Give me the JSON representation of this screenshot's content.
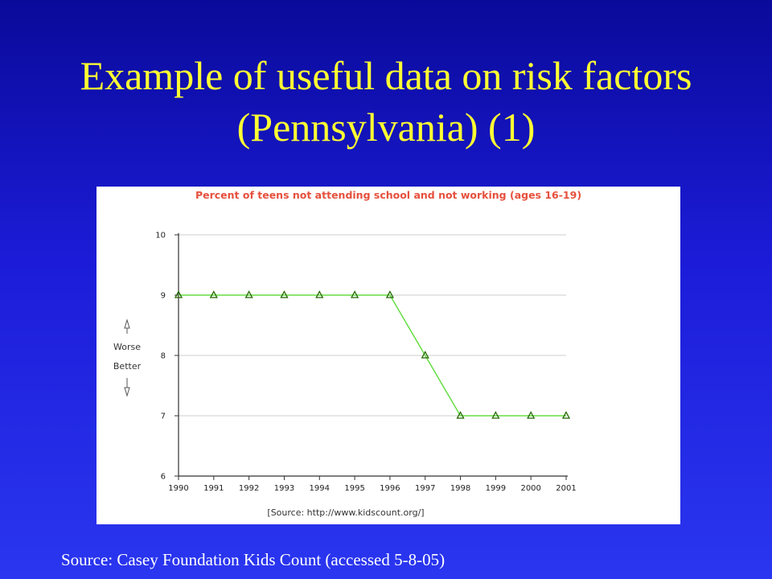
{
  "slide": {
    "title": "Example of useful data on risk factors (Pennsylvania) (1)",
    "footer": "Source: Casey Foundation Kids Count (accessed 5-8-05)"
  },
  "chart_data": {
    "type": "line",
    "title": "Percent of teens not attending school and not working (ages 16-19)",
    "xlabel": "",
    "ylabel": "",
    "x": [
      "1990",
      "1991",
      "1992",
      "1993",
      "1994",
      "1995",
      "1996",
      "1997",
      "1998",
      "1999",
      "2000",
      "2001"
    ],
    "series": [
      {
        "values": [
          9,
          9,
          9,
          9,
          9,
          9,
          9,
          8,
          7,
          7,
          7,
          7
        ]
      }
    ],
    "ylim": [
      6,
      10
    ],
    "yticks": [
      6,
      7,
      8,
      9,
      10
    ],
    "grid": true,
    "marker": "triangle",
    "line_color": "#66dd44",
    "marker_color": "#226600",
    "title_color": "#e6503c",
    "side_labels": {
      "up": "Worse",
      "down": "Better"
    },
    "source_note": "[Source: http://www.kidscount.org/]"
  }
}
